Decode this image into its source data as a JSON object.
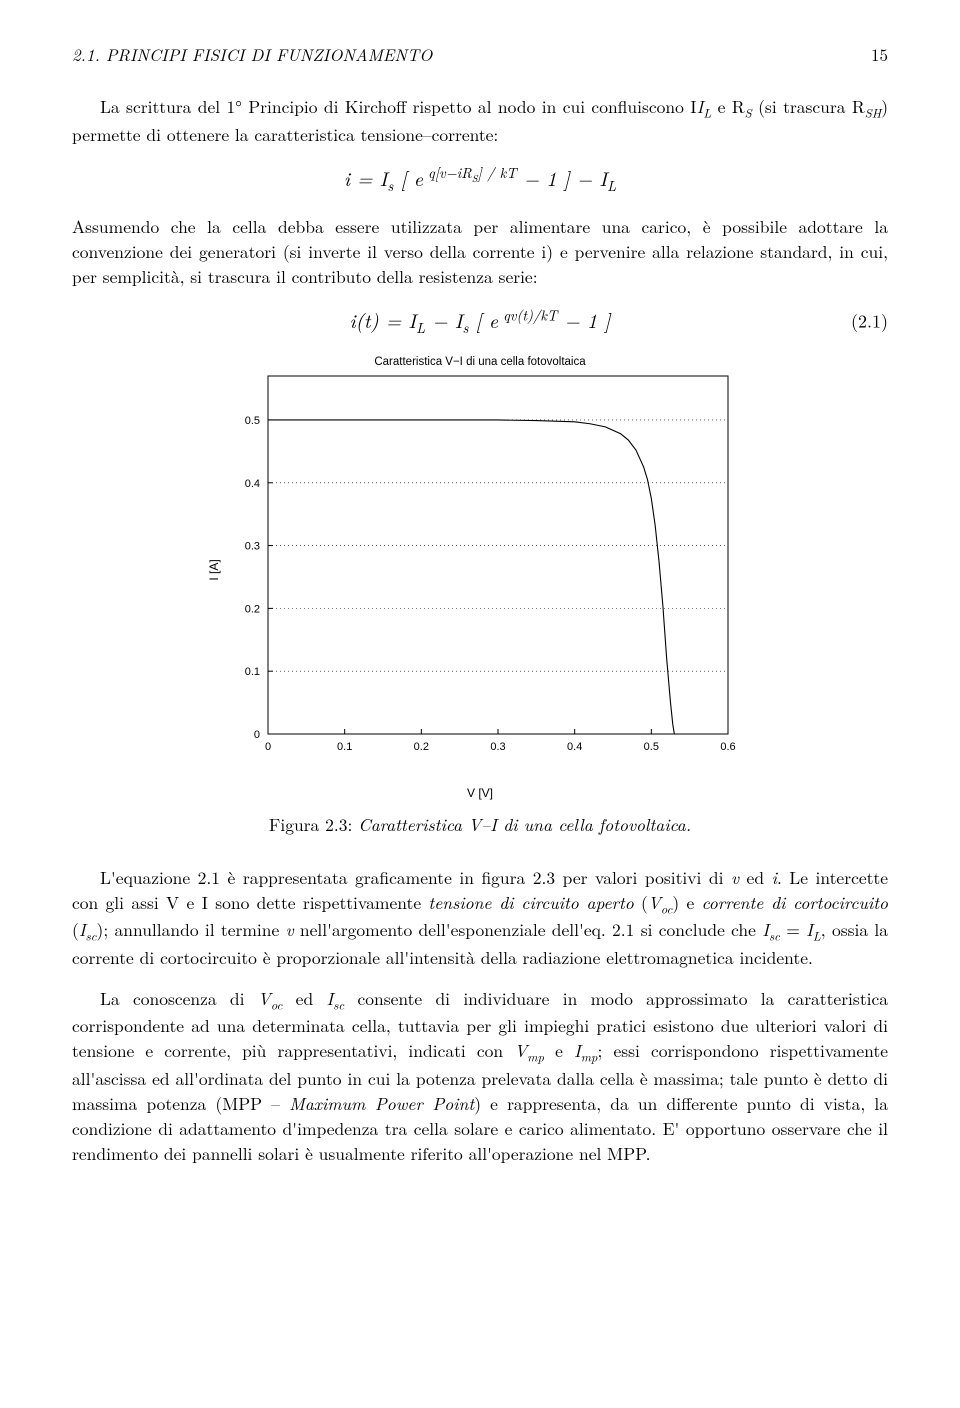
{
  "header": {
    "section": "2.1.  PRINCIPI FISICI DI FUNZIONAMENTO",
    "page": "15"
  },
  "para1": "La scrittura del 1° Principio di Kirchoff rispetto al nodo in cui confluiscono I",
  "para1b": " e R",
  "para1c": " (si trascura R",
  "para1d": ") permette di ottenere la caratteristica tensione–corrente:",
  "equation1_html": "i = I<sub>s</sub> [ e<sup> q[v−iR<sub>S</sub>] / kT</sup> − 1 ] − I<sub>L</sub>",
  "para2": "Assumendo che la cella debba essere utilizzata per alimentare una carico, è possibile adottare la convenzione dei generatori (si inverte il verso della corrente i) e pervenire alla relazione standard, in cui, per semplicità, si trascura il contributo della resistenza serie:",
  "equation2_html": "i(t) = I<sub>L</sub> − I<sub>s</sub> [ e<sup> qv(t)/kT</sup> − 1 ]",
  "equation2_num": "(2.1)",
  "chart": {
    "title": "Caratteristica V−I di una cella fotovoltaica",
    "xlabel": "V [V]",
    "ylabel": "I [A]",
    "xlim": [
      0,
      0.6
    ],
    "ylim": [
      0,
      0.57
    ],
    "xticks": [
      0,
      0.1,
      0.2,
      0.3,
      0.4,
      0.5,
      0.6
    ],
    "yticks": [
      0,
      0.1,
      0.2,
      0.3,
      0.4,
      0.5
    ],
    "xtick_labels": [
      "0",
      "0.1",
      "0.2",
      "0.3",
      "0.4",
      "0.5",
      "0.6"
    ],
    "ytick_labels": [
      "0",
      "0.1",
      "0.2",
      "0.3",
      "0.4",
      "0.5"
    ],
    "line_color": "#000000",
    "grid_color": "#000000",
    "grid_dash": "1,3",
    "background": "#ffffff",
    "line_width": 1.1,
    "data": {
      "v": [
        0,
        0.05,
        0.1,
        0.15,
        0.2,
        0.25,
        0.3,
        0.35,
        0.4,
        0.42,
        0.44,
        0.46,
        0.47,
        0.48,
        0.49,
        0.495,
        0.5,
        0.505,
        0.51,
        0.515,
        0.52,
        0.525,
        0.528,
        0.53
      ],
      "i": [
        0.5,
        0.5,
        0.5,
        0.5,
        0.5,
        0.5,
        0.5,
        0.499,
        0.497,
        0.494,
        0.489,
        0.478,
        0.468,
        0.452,
        0.425,
        0.405,
        0.375,
        0.332,
        0.275,
        0.205,
        0.12,
        0.05,
        0.015,
        0.0
      ]
    }
  },
  "caption": {
    "label": "Figura 2.3:",
    "text": "Caratteristica V–I di una cella fotovoltaica."
  },
  "para3_html": "L'equazione 2.1 è rappresentata graficamente in figura 2.3 per valori positivi di <i>v</i> ed <i>i</i>. Le intercette con gli assi V e I sono dette rispettivamente <i>tensione di circuito aperto</i> (<i>V<sub>oc</sub></i>) e <i>corrente di cortocircuito</i> (<i>I<sub>sc</sub></i>); annullando il termine <i>v</i> nell'argomento dell'esponenziale dell'eq. 2.1 si conclude che <i>I<sub>sc</sub></i> = <i>I<sub>L</sub></i>, ossia la corrente di cortocircuito è proporzionale all'intensità della radiazione elettromagnetica incidente.",
  "para4_html": "La conoscenza di <i>V<sub>oc</sub></i> ed <i>I<sub>sc</sub></i> consente di individuare in modo approssimato la caratteristica corrispondente ad una determinata cella, tuttavia per gli impieghi pratici esistono due ulteriori valori di tensione e corrente, più rappresentativi, indicati con <i>V<sub>mp</sub></i> e <i>I<sub>mp</sub></i>; essi corrispondono rispettivamente all'ascissa ed all'ordinata del punto in cui la potenza prelevata dalla cella è massima; tale punto è detto di massima potenza (MPP – <i>Maximum Power Point</i>) e rappresenta, da un differente punto di vista, la condizione di adattamento d'impedenza tra cella solare e carico alimentato. E' opportuno osservare che il rendimento dei pannelli solari è usualmente riferito all'operazione nel MPP."
}
